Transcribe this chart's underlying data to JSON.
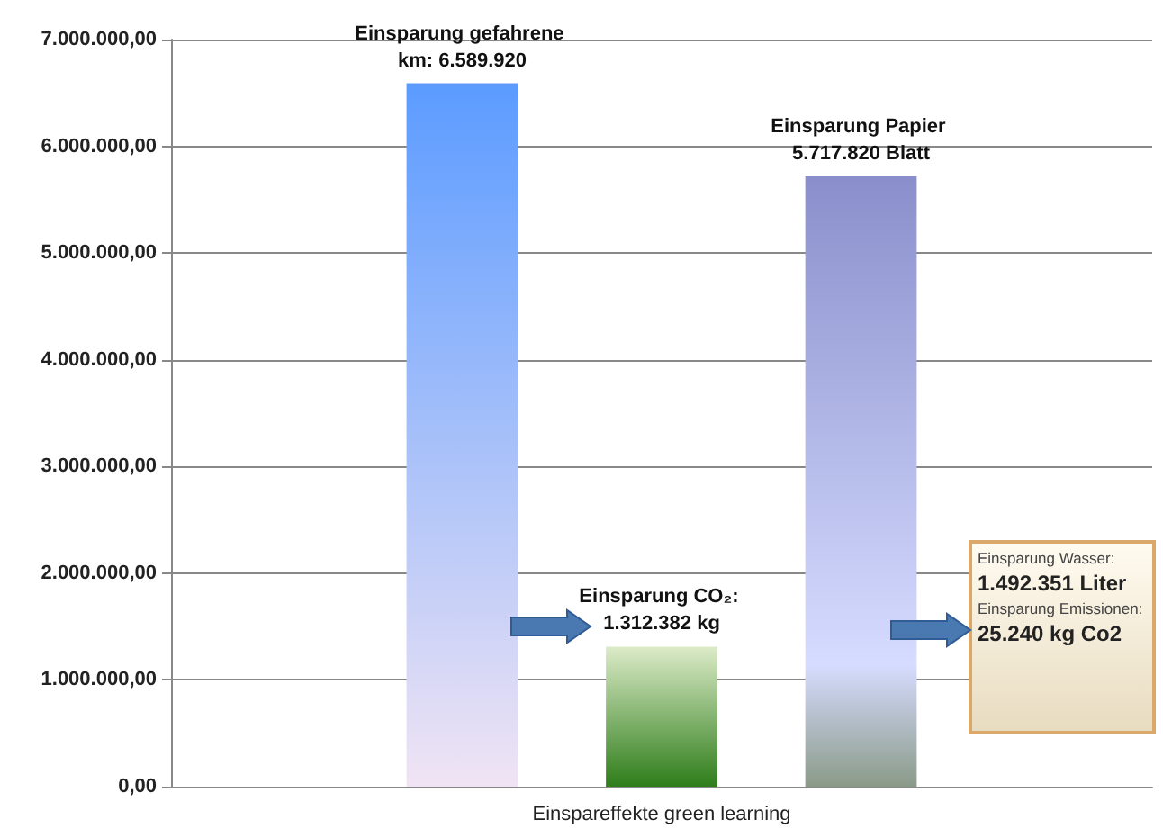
{
  "chart_data": {
    "type": "bar",
    "categories": [
      "Einspareffekte green learning"
    ],
    "series": [
      {
        "color": "#5b9bff",
        "values": [
          6589920
        ],
        "value_labels": [
          "Einsparung gefahrene km: 6.589.920"
        ]
      },
      {
        "color": "#2e7d1a",
        "values": [
          1312382
        ],
        "value_labels": [
          "Einsparung CO₂: 1.312.382 kg"
        ]
      },
      {
        "color": "#8a8fcc",
        "values": [
          5717820
        ],
        "value_labels": [
          "Einsparung Papier 5.717.820 Blatt"
        ]
      }
    ],
    "ylim": [
      0,
      7000000
    ],
    "yticks": [
      {
        "value": 0,
        "label": "0,00"
      },
      {
        "value": 1000000,
        "label": "1.000.000,00"
      },
      {
        "value": 2000000,
        "label": "2.000.000,00"
      },
      {
        "value": 3000000,
        "label": "3.000.000,00"
      },
      {
        "value": 4000000,
        "label": "4.000.000,00"
      },
      {
        "value": 5000000,
        "label": "5.000.000,00"
      },
      {
        "value": 6000000,
        "label": "6.000.000,00"
      },
      {
        "value": 7000000,
        "label": "7.000.000,00"
      }
    ],
    "grid": "y",
    "annotations": [
      "Einsparung Wasser:",
      "1.492.351 Liter",
      "Einsparung Emissionen:",
      "25.240 kg Co2"
    ]
  }
}
